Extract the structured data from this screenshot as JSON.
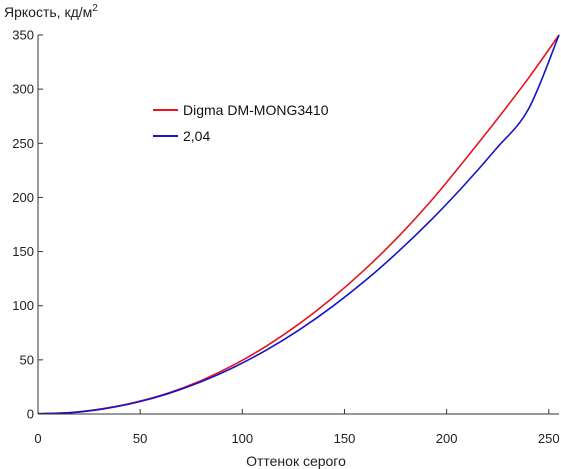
{
  "chart_data": {
    "type": "line",
    "title": "",
    "xlabel": "Оттенок серого",
    "ylabel": "Яркость, кд/м",
    "ylabel_superscript": "2",
    "xlim": [
      0,
      255
    ],
    "ylim": [
      0,
      350
    ],
    "xticks": [
      0,
      50,
      100,
      150,
      200,
      250
    ],
    "yticks": [
      0,
      50,
      100,
      150,
      200,
      250,
      300,
      350
    ],
    "grid": false,
    "legend_position": "upper-left-center",
    "series": [
      {
        "name": "Digma DM-MONG3410",
        "color": "#e8141e",
        "x": [
          0,
          16,
          32,
          48,
          64,
          80,
          96,
          112,
          128,
          144,
          160,
          176,
          192,
          208,
          224,
          240,
          255
        ],
        "y": [
          0.3,
          1.3,
          5.0,
          11.0,
          19.5,
          31.0,
          45.5,
          63.0,
          83.5,
          107.0,
          133.5,
          163.0,
          196.0,
          232.5,
          270.5,
          310.0,
          350.0
        ]
      },
      {
        "name": "2,04",
        "color": "#1414c8",
        "x": [
          0,
          16,
          32,
          48,
          64,
          80,
          96,
          112,
          128,
          144,
          160,
          176,
          192,
          208,
          224,
          240,
          255
        ],
        "y": [
          0.3,
          1.2,
          4.7,
          10.6,
          19.0,
          29.9,
          43.3,
          59.3,
          77.9,
          99.1,
          122.9,
          149.4,
          178.4,
          210.1,
          244.4,
          281.4,
          350.0
        ]
      }
    ]
  }
}
